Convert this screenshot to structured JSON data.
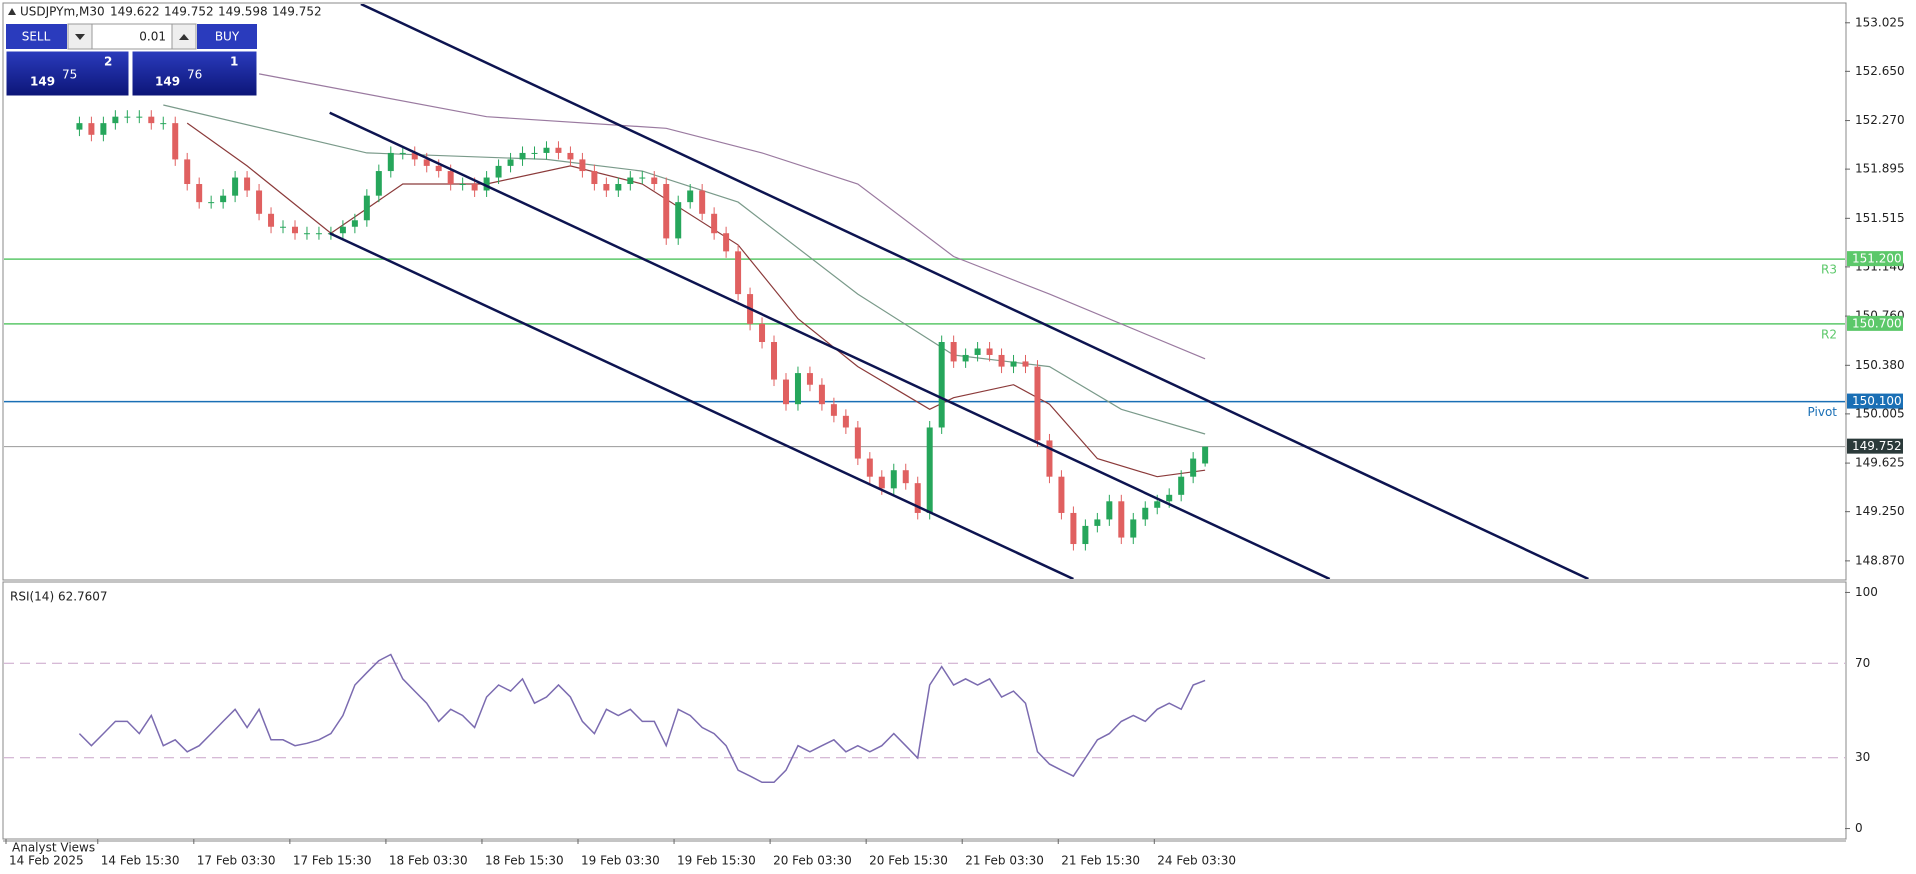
{
  "header": {
    "symbol": "USDJPYm,M30"
  },
  "trade_panel": {
    "sell": "SELL",
    "buy": "BUY",
    "lot": "0.01",
    "sell_price": [
      "149",
      "75",
      "2"
    ],
    "buy_price": [
      "149",
      "76",
      "1"
    ]
  },
  "footer": {
    "tab": "Analyst Views"
  },
  "chart_data": {
    "type": "candlestick",
    "categories": [
      "14 Feb 2025",
      "14 Feb 15:30",
      "17 Feb 03:30",
      "17 Feb 15:30",
      "18 Feb 03:30",
      "18 Feb 15:30",
      "19 Feb 03:30",
      "19 Feb 15:30",
      "20 Feb 03:30",
      "20 Feb 15:30",
      "21 Feb 03:30",
      "21 Feb 15:30",
      "24 Feb 03:30"
    ],
    "ylim": [
      148.73,
      153.17
    ],
    "yticks": [
      153.025,
      {
        "value": 152.65,
        "label": "152.650"
      },
      {
        "value": 152.27,
        "label": "152.270"
      },
      151.895,
      151.515,
      {
        "value": 151.14,
        "label": "151.140"
      },
      {
        "value": 150.76,
        "label": "150.760"
      },
      {
        "value": 150.38,
        "label": "150.380"
      },
      150.005,
      149.625,
      {
        "value": 149.25,
        "label": "149.250"
      },
      {
        "value": 148.87,
        "label": "148.870"
      }
    ],
    "bull_color": "#26a65b",
    "bear_color": "#e06060",
    "candles": [
      [
        152.2,
        152.3,
        152.15,
        152.25
      ],
      [
        152.25,
        152.3,
        152.11,
        152.16
      ],
      [
        152.16,
        152.3,
        152.11,
        152.25
      ],
      [
        152.25,
        152.35,
        152.2,
        152.3
      ],
      [
        152.3,
        152.35,
        152.25,
        152.3
      ],
      [
        152.3,
        152.35,
        152.25,
        152.3
      ],
      [
        152.3,
        152.35,
        152.2,
        152.25
      ],
      [
        152.25,
        152.3,
        152.2,
        152.25
      ],
      [
        152.25,
        152.3,
        151.92,
        151.97
      ],
      [
        151.97,
        152.02,
        151.73,
        151.78
      ],
      [
        151.78,
        151.83,
        151.59,
        151.64
      ],
      [
        151.64,
        151.69,
        151.59,
        151.64
      ],
      [
        151.64,
        151.74,
        151.59,
        151.69
      ],
      [
        151.69,
        151.88,
        151.64,
        151.83
      ],
      [
        151.83,
        151.88,
        151.68,
        151.73
      ],
      [
        151.73,
        151.78,
        151.5,
        151.55
      ],
      [
        151.55,
        151.6,
        151.4,
        151.45
      ],
      [
        151.45,
        151.5,
        151.4,
        151.45
      ],
      [
        151.45,
        151.5,
        151.35,
        151.4
      ],
      [
        151.4,
        151.45,
        151.35,
        151.4
      ],
      [
        151.4,
        151.45,
        151.35,
        151.4
      ],
      [
        151.4,
        151.45,
        151.35,
        151.4
      ],
      [
        151.4,
        151.5,
        151.35,
        151.45
      ],
      [
        151.45,
        151.55,
        151.4,
        151.5
      ],
      [
        151.5,
        151.74,
        151.45,
        151.69
      ],
      [
        151.69,
        151.93,
        151.64,
        151.88
      ],
      [
        151.88,
        152.07,
        151.83,
        152.02
      ],
      [
        152.02,
        152.07,
        151.97,
        152.02
      ],
      [
        152.02,
        152.07,
        151.92,
        151.97
      ],
      [
        151.97,
        152.02,
        151.87,
        151.92
      ],
      [
        151.92,
        151.97,
        151.83,
        151.88
      ],
      [
        151.88,
        151.93,
        151.73,
        151.78
      ],
      [
        151.78,
        151.83,
        151.73,
        151.78
      ],
      [
        151.78,
        151.83,
        151.68,
        151.73
      ],
      [
        151.73,
        151.88,
        151.68,
        151.83
      ],
      [
        151.83,
        151.97,
        151.78,
        151.92
      ],
      [
        151.92,
        152.02,
        151.87,
        151.97
      ],
      [
        151.97,
        152.07,
        151.92,
        152.02
      ],
      [
        152.02,
        152.07,
        151.97,
        152.02
      ],
      [
        152.02,
        152.11,
        151.97,
        152.06
      ],
      [
        152.06,
        152.11,
        151.97,
        152.02
      ],
      [
        152.02,
        152.07,
        151.92,
        151.97
      ],
      [
        151.97,
        152.02,
        151.83,
        151.88
      ],
      [
        151.88,
        151.93,
        151.73,
        151.78
      ],
      [
        151.78,
        151.83,
        151.68,
        151.73
      ],
      [
        151.73,
        151.83,
        151.68,
        151.78
      ],
      [
        151.78,
        151.88,
        151.73,
        151.83
      ],
      [
        151.83,
        151.88,
        151.78,
        151.83
      ],
      [
        151.83,
        151.88,
        151.73,
        151.78
      ],
      [
        151.78,
        151.83,
        151.31,
        151.36
      ],
      [
        151.36,
        151.69,
        151.31,
        151.64
      ],
      [
        151.64,
        151.78,
        151.59,
        151.73
      ],
      [
        151.73,
        151.78,
        151.5,
        151.55
      ],
      [
        151.55,
        151.6,
        151.35,
        151.4
      ],
      [
        151.4,
        151.45,
        151.21,
        151.26
      ],
      [
        151.26,
        151.31,
        150.88,
        150.93
      ],
      [
        150.93,
        150.98,
        150.65,
        150.7
      ],
      [
        150.7,
        150.75,
        150.51,
        150.56
      ],
      [
        150.56,
        150.61,
        150.22,
        150.27
      ],
      [
        150.27,
        150.32,
        150.03,
        150.08
      ],
      [
        150.08,
        150.37,
        150.03,
        150.32
      ],
      [
        150.32,
        150.37,
        150.18,
        150.23
      ],
      [
        150.23,
        150.28,
        150.03,
        150.08
      ],
      [
        150.08,
        150.13,
        149.94,
        149.99
      ],
      [
        149.99,
        150.04,
        149.85,
        149.9
      ],
      [
        149.9,
        149.95,
        149.61,
        149.66
      ],
      [
        149.66,
        149.71,
        149.47,
        149.52
      ],
      [
        149.52,
        149.57,
        149.38,
        149.43
      ],
      [
        149.43,
        149.62,
        149.38,
        149.57
      ],
      [
        149.57,
        149.62,
        149.42,
        149.47
      ],
      [
        149.47,
        149.52,
        149.19,
        149.24
      ],
      [
        149.24,
        149.95,
        149.19,
        149.9
      ],
      [
        149.9,
        150.61,
        149.85,
        150.56
      ],
      [
        150.56,
        150.61,
        150.36,
        150.41
      ],
      [
        150.41,
        150.51,
        150.36,
        150.46
      ],
      [
        150.46,
        150.56,
        150.41,
        150.51
      ],
      [
        150.51,
        150.56,
        150.41,
        150.46
      ],
      [
        150.46,
        150.51,
        150.32,
        150.37
      ],
      [
        150.37,
        150.46,
        150.32,
        150.41
      ],
      [
        150.41,
        150.46,
        150.32,
        150.37
      ],
      [
        150.37,
        150.42,
        149.75,
        149.8
      ],
      [
        149.8,
        149.85,
        149.47,
        149.52
      ],
      [
        149.52,
        149.57,
        149.19,
        149.24
      ],
      [
        149.24,
        149.29,
        148.95,
        149.0
      ],
      [
        149.0,
        149.19,
        148.95,
        149.14
      ],
      [
        149.14,
        149.24,
        149.09,
        149.19
      ],
      [
        149.19,
        149.38,
        149.14,
        149.33
      ],
      [
        149.33,
        149.38,
        149.0,
        149.05
      ],
      [
        149.05,
        149.24,
        149.0,
        149.19
      ],
      [
        149.19,
        149.33,
        149.14,
        149.28
      ],
      [
        149.28,
        149.38,
        149.23,
        149.33
      ],
      [
        149.33,
        149.43,
        149.28,
        149.38
      ],
      [
        149.38,
        149.57,
        149.33,
        149.52
      ],
      [
        149.52,
        149.71,
        149.47,
        149.66
      ],
      [
        149.622,
        149.752,
        149.598,
        149.752
      ]
    ],
    "moving_averages": [
      {
        "color": "#9a7aa0",
        "x": [
          15,
          34,
          49,
          57,
          65,
          73,
          81,
          94
        ],
        "values": [
          152.63,
          152.3,
          152.21,
          152.02,
          151.78,
          151.22,
          150.93,
          150.43
        ]
      },
      {
        "color": "#7a9a8a",
        "x": [
          7,
          24,
          39,
          47,
          55,
          65,
          73,
          81,
          87,
          94
        ],
        "values": [
          152.39,
          152.02,
          151.97,
          151.88,
          151.64,
          150.93,
          150.46,
          150.37,
          150.04,
          149.85
        ]
      },
      {
        "color": "#8b3a3a",
        "x": [
          9,
          14,
          21,
          27,
          34,
          41,
          47,
          55,
          60,
          65,
          71,
          73,
          78,
          81,
          85,
          90,
          94
        ],
        "values": [
          152.25,
          151.92,
          151.4,
          151.78,
          151.78,
          151.92,
          151.78,
          151.31,
          150.74,
          150.37,
          150.04,
          150.13,
          150.23,
          150.08,
          149.66,
          149.52,
          149.57
        ]
      }
    ],
    "channel_lines": [
      {
        "x": [
          23.5,
          126
        ],
        "values": [
          153.17,
          148.73
        ]
      },
      {
        "x": [
          20.9,
          104.4
        ],
        "values": [
          152.33,
          148.73
        ]
      },
      {
        "x": [
          20.9,
          83
        ],
        "values": [
          151.4,
          148.73
        ]
      }
    ],
    "channel_color": "#0d1450",
    "levels": [
      {
        "value": 151.2,
        "label": "151.200",
        "name": "R3",
        "color": "#5cc86a"
      },
      {
        "value": 150.7,
        "label": "150.700",
        "name": "R2",
        "color": "#5cc86a"
      },
      {
        "value": 150.1,
        "label": "150.100",
        "name": "Pivot",
        "color": "#1a6fb5"
      }
    ],
    "current_price": {
      "value": 149.752,
      "label": "149.752",
      "color": "#999999"
    },
    "rsi": {
      "title": "RSI(14) 62.7607",
      "color": "#7b6bb0",
      "ylim": [
        -4,
        104
      ],
      "yticks": [
        0,
        30,
        70,
        100
      ],
      "values": [
        40.2,
        35.1,
        40.2,
        45.4,
        45.4,
        40.2,
        47.9,
        35.1,
        37.6,
        32.5,
        35.1,
        40.2,
        45.4,
        50.5,
        42.8,
        50.5,
        37.6,
        37.6,
        35.1,
        36.1,
        37.6,
        40.2,
        47.9,
        60.8,
        66.0,
        71.1,
        73.7,
        63.4,
        58.2,
        53.1,
        45.4,
        50.5,
        47.9,
        42.8,
        55.7,
        60.8,
        58.2,
        63.4,
        53.1,
        55.7,
        60.8,
        55.7,
        45.4,
        40.2,
        50.5,
        47.9,
        50.5,
        45.4,
        45.4,
        35.1,
        50.5,
        47.9,
        42.8,
        40.2,
        35.1,
        24.7,
        22.2,
        19.6,
        19.6,
        24.7,
        35.1,
        32.5,
        35.1,
        37.6,
        32.5,
        35.1,
        32.5,
        35.1,
        40.2,
        35.1,
        29.9,
        60.8,
        68.6,
        60.8,
        63.4,
        60.8,
        63.4,
        55.7,
        58.2,
        53.1,
        32.5,
        27.3,
        24.7,
        22.2,
        29.9,
        37.6,
        40.2,
        45.4,
        47.9,
        45.4,
        50.5,
        53.1,
        50.5,
        60.8,
        62.76
      ]
    }
  }
}
